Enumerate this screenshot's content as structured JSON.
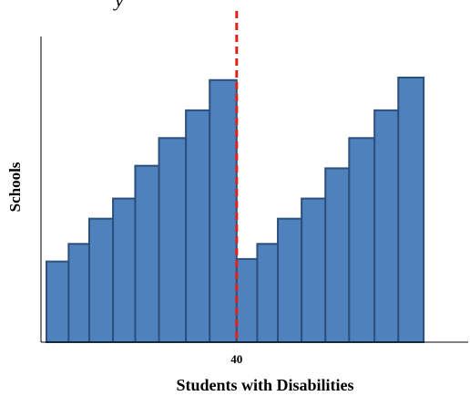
{
  "caption_fragment": "y",
  "chart_data": {
    "type": "bar",
    "title": "",
    "xlabel": "Students with Disabilities",
    "ylabel": "Schools",
    "cutoff": {
      "x": 40,
      "label": "40",
      "style": "dashed",
      "color": "#e3201b"
    },
    "bar_fill": "#4f81bd",
    "bar_stroke": "#2c4f7c",
    "xlim": [
      28,
      53
    ],
    "ylim": [
      0,
      11
    ],
    "grid": false,
    "legend": "none",
    "bars": [
      {
        "x0": 28,
        "x1": 29.4,
        "value": 3.2
      },
      {
        "x0": 29.4,
        "x1": 30.7,
        "value": 3.9
      },
      {
        "x0": 30.7,
        "x1": 32.2,
        "value": 4.9
      },
      {
        "x0": 32.2,
        "x1": 33.6,
        "value": 5.7
      },
      {
        "x0": 33.6,
        "x1": 35.1,
        "value": 7.0
      },
      {
        "x0": 35.1,
        "x1": 36.8,
        "value": 8.1
      },
      {
        "x0": 36.8,
        "x1": 38.3,
        "value": 9.2
      },
      {
        "x0": 38.3,
        "x1": 40.0,
        "value": 10.4
      },
      {
        "x0": 40.0,
        "x1": 41.3,
        "value": 3.3
      },
      {
        "x0": 41.3,
        "x1": 42.6,
        "value": 3.9
      },
      {
        "x0": 42.6,
        "x1": 44.1,
        "value": 4.9
      },
      {
        "x0": 44.1,
        "x1": 45.6,
        "value": 5.7
      },
      {
        "x0": 45.6,
        "x1": 47.1,
        "value": 6.9
      },
      {
        "x0": 47.1,
        "x1": 48.7,
        "value": 8.1
      },
      {
        "x0": 48.7,
        "x1": 50.2,
        "value": 9.2
      },
      {
        "x0": 50.2,
        "x1": 51.8,
        "value": 10.5
      }
    ]
  }
}
